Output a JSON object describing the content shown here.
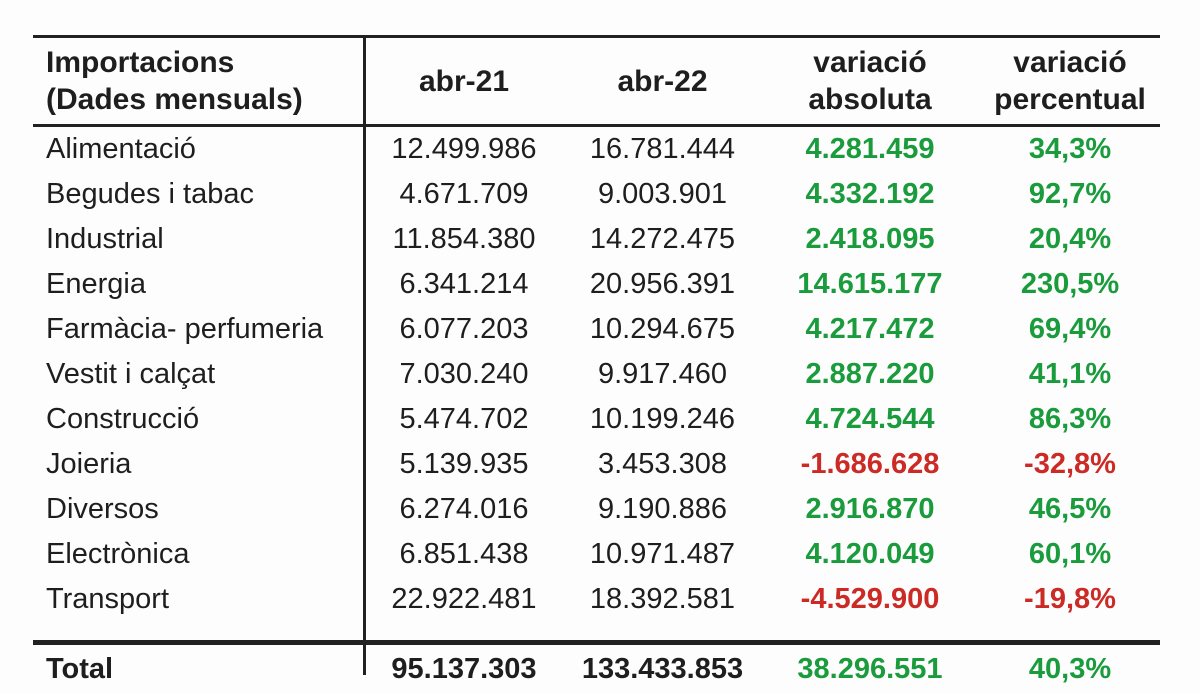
{
  "table": {
    "title_line1": "Importacions",
    "title_line2": "(Dades mensuals)",
    "columns": {
      "period1": "abr-21",
      "period2": "abr-22",
      "abs_line1": "variació",
      "abs_line2": "absoluta",
      "pct_line1": "variació",
      "pct_line2": "percentual"
    },
    "rows": [
      {
        "label": "Alimentació",
        "abr21": "12.499.986",
        "abr22": "16.781.444",
        "variacio_absoluta": "4.281.459",
        "variacio_percentual": "34,3%",
        "trend": "up"
      },
      {
        "label": "Begudes i tabac",
        "abr21": "4.671.709",
        "abr22": "9.003.901",
        "variacio_absoluta": "4.332.192",
        "variacio_percentual": "92,7%",
        "trend": "up"
      },
      {
        "label": "Industrial",
        "abr21": "11.854.380",
        "abr22": "14.272.475",
        "variacio_absoluta": "2.418.095",
        "variacio_percentual": "20,4%",
        "trend": "up"
      },
      {
        "label": "Energia",
        "abr21": "6.341.214",
        "abr22": "20.956.391",
        "variacio_absoluta": "14.615.177",
        "variacio_percentual": "230,5%",
        "trend": "up"
      },
      {
        "label": "Farmàcia- perfumeria",
        "abr21": "6.077.203",
        "abr22": "10.294.675",
        "variacio_absoluta": "4.217.472",
        "variacio_percentual": "69,4%",
        "trend": "up"
      },
      {
        "label": "Vestit i calçat",
        "abr21": "7.030.240",
        "abr22": "9.917.460",
        "variacio_absoluta": "2.887.220",
        "variacio_percentual": "41,1%",
        "trend": "up"
      },
      {
        "label": "Construcció",
        "abr21": "5.474.702",
        "abr22": "10.199.246",
        "variacio_absoluta": "4.724.544",
        "variacio_percentual": "86,3%",
        "trend": "up"
      },
      {
        "label": "Joieria",
        "abr21": "5.139.935",
        "abr22": "3.453.308",
        "variacio_absoluta": "-1.686.628",
        "variacio_percentual": "-32,8%",
        "trend": "down"
      },
      {
        "label": "Diversos",
        "abr21": "6.274.016",
        "abr22": "9.190.886",
        "variacio_absoluta": "2.916.870",
        "variacio_percentual": "46,5%",
        "trend": "up"
      },
      {
        "label": "Electrònica",
        "abr21": "6.851.438",
        "abr22": "10.971.487",
        "variacio_absoluta": "4.120.049",
        "variacio_percentual": "60,1%",
        "trend": "up"
      },
      {
        "label": "Transport",
        "abr21": "22.922.481",
        "abr22": "18.392.581",
        "variacio_absoluta": "-4.529.900",
        "variacio_percentual": "-19,8%",
        "trend": "down"
      }
    ],
    "total": {
      "label": "Total",
      "abr21": "95.137.303",
      "abr22": "133.433.853",
      "variacio_absoluta": "38.296.551",
      "variacio_percentual": "40,3%",
      "trend": "up"
    },
    "colors": {
      "positive": "#1a9b3c",
      "negative": "#cc2a25",
      "line": "#212121"
    }
  }
}
